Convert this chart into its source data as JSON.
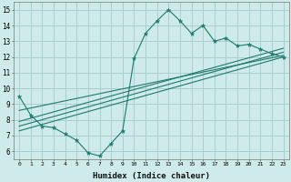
{
  "xlabel": "Humidex (Indice chaleur)",
  "ylabel": "",
  "bg_color": "#ceeaea",
  "grid_color": "#aacfcf",
  "line_color": "#1e7a6e",
  "xlim": [
    -0.5,
    23.5
  ],
  "ylim": [
    5.5,
    15.5
  ],
  "x_ticks": [
    0,
    1,
    2,
    3,
    4,
    5,
    6,
    7,
    8,
    9,
    10,
    11,
    12,
    13,
    14,
    15,
    16,
    17,
    18,
    19,
    20,
    21,
    22,
    23
  ],
  "y_ticks": [
    6,
    7,
    8,
    9,
    10,
    11,
    12,
    13,
    14,
    15
  ],
  "data_y": [
    9.5,
    8.3,
    7.6,
    7.5,
    7.1,
    6.7,
    5.9,
    5.7,
    6.5,
    7.3,
    11.9,
    13.5,
    14.3,
    15.0,
    14.3,
    13.5,
    14.0,
    13.0,
    13.2,
    12.7,
    12.8,
    12.5,
    12.2,
    12.0
  ],
  "reg_lines": [
    [
      [
        0,
        7.3
      ],
      [
        23,
        12.0
      ]
    ],
    [
      [
        0,
        7.6
      ],
      [
        23,
        12.3
      ]
    ],
    [
      [
        0,
        7.9
      ],
      [
        23,
        12.55
      ]
    ],
    [
      [
        0,
        8.6
      ],
      [
        23,
        12.1
      ]
    ]
  ]
}
